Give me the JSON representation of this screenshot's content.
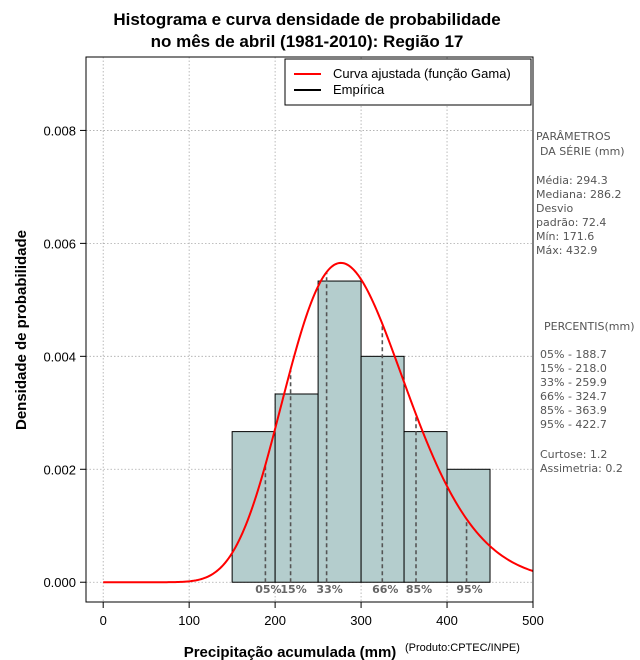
{
  "chart_data": {
    "type": "bar",
    "title_line1": "Histograma e curva densidade de probabilidade",
    "title_line2": "no mês de abril (1981-2010): Região 17",
    "xlabel": "Precipitação acumulada (mm)",
    "ylabel": "Densidade de probabilidade",
    "credit": "(Produto:CPTEC/INPE)",
    "xlim": [
      -20,
      500
    ],
    "ylim": [
      -0.00035,
      0.0093
    ],
    "xticks": [
      0,
      100,
      200,
      300,
      400,
      500
    ],
    "yticks": [
      0.0,
      0.002,
      0.004,
      0.006,
      0.008
    ],
    "ytick_labels": [
      "0.000",
      "0.002",
      "0.004",
      "0.006",
      "0.008"
    ],
    "grid": true,
    "bins": [
      {
        "x0": 150,
        "x1": 200,
        "density": 0.002667
      },
      {
        "x0": 200,
        "x1": 250,
        "density": 0.003333
      },
      {
        "x0": 250,
        "x1": 300,
        "density": 0.005333
      },
      {
        "x0": 300,
        "x1": 350,
        "density": 0.004
      },
      {
        "x0": 350,
        "x1": 400,
        "density": 0.002667
      },
      {
        "x0": 400,
        "x1": 450,
        "density": 0.002
      }
    ],
    "fitted_curve": {
      "distribution": "gamma",
      "mean": 294.3,
      "sd": 72.4,
      "color": "#ff0000"
    },
    "percentile_lines": [
      {
        "label": "05%",
        "value": 188.7
      },
      {
        "label": "15%",
        "value": 218.0
      },
      {
        "label": "33%",
        "value": 259.9
      },
      {
        "label": "66%",
        "value": 324.7
      },
      {
        "label": "85%",
        "value": 363.9
      },
      {
        "label": "95%",
        "value": 422.7
      }
    ],
    "legend": {
      "placement": "top-right",
      "entries": [
        {
          "label": "Curva ajustada (função Gama)",
          "color": "#ff0000"
        },
        {
          "label": "Empírica",
          "color": "#000000"
        }
      ]
    },
    "colors": {
      "bar_fill": "#b4cdcd",
      "bar_stroke": "#000000",
      "grid": "#aaaaaa"
    }
  },
  "stats_panel": {
    "params_title_line1": "PARÂMETROS",
    "params_title_line2": "DA SÉRIE (mm)",
    "media": "Média:  294.3",
    "mediana": "Mediana:  286.2",
    "desvio_line1": "Desvio",
    "desvio_line2": "padrão:  72.4",
    "min": "Mín:  171.6",
    "max": "Máx:  432.9",
    "percentis_title": "PERCENTIS(mm)",
    "p05": "05% -   188.7",
    "p15": "15% -   218.0",
    "p33": "33% -   259.9",
    "p66": "66% -   324.7",
    "p85": "85% -   363.9",
    "p95": "95% -   422.7",
    "curtose": "Curtose:  1.2",
    "assimetria": "Assimetria:  0.2"
  }
}
